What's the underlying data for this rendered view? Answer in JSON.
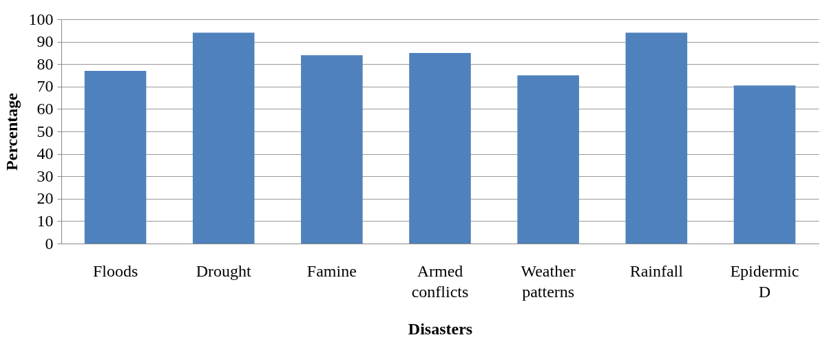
{
  "chart_data": {
    "type": "bar",
    "xlabel": "Disasters",
    "ylabel": "Percentage",
    "categories": [
      "Floods",
      "Drought",
      "Famine",
      "Armed conflicts",
      "Weather patterns",
      "Rainfall",
      "Epidermic D"
    ],
    "values": [
      77,
      94,
      84,
      85,
      75,
      94,
      70.5
    ],
    "color": "#4f81bd",
    "ylim": [
      0,
      100
    ],
    "yticks": [
      0,
      10,
      20,
      30,
      40,
      50,
      60,
      70,
      80,
      90,
      100
    ],
    "grid": "y"
  }
}
